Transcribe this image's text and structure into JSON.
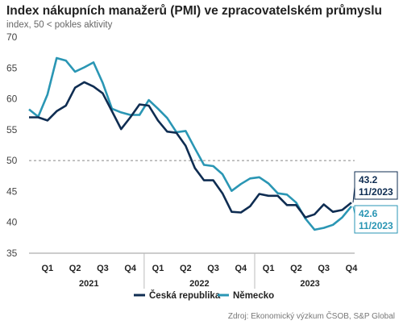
{
  "header": {
    "title": "Index nákupních manažerů (PMI) ve zpracovatelském průmyslu",
    "subtitle": "index, 50 < pokles aktivity"
  },
  "source": "Zdroj: Ekonomický výzkum ČSOB, S&P Global",
  "colors": {
    "cz": "#0f2d52",
    "de": "#2a96b4",
    "grid": "#d9d9d9",
    "ref": "#888888"
  },
  "chart_data": {
    "type": "line",
    "title": "Index nákupních manažerů (PMI) ve zpracovatelském průmyslu",
    "subtitle": "index, 50 < pokles aktivity",
    "ylim": [
      35,
      70
    ],
    "yticks": [
      35,
      40,
      45,
      50,
      55,
      60,
      65,
      70
    ],
    "reference_line": 50,
    "grid": false,
    "legend_position": "bottom",
    "x": [
      "2020-12",
      "2021-01",
      "2021-02",
      "2021-03",
      "2021-04",
      "2021-05",
      "2021-06",
      "2021-07",
      "2021-08",
      "2021-09",
      "2021-10",
      "2021-11",
      "2021-12",
      "2022-01",
      "2022-02",
      "2022-03",
      "2022-04",
      "2022-05",
      "2022-06",
      "2022-07",
      "2022-08",
      "2022-09",
      "2022-10",
      "2022-11",
      "2022-12",
      "2023-01",
      "2023-02",
      "2023-03",
      "2023-04",
      "2023-05",
      "2023-06",
      "2023-07",
      "2023-08",
      "2023-09",
      "2023-10",
      "2023-11"
    ],
    "quarter_labels": [
      "Q1",
      "Q2",
      "Q3",
      "Q4",
      "Q1",
      "Q2",
      "Q3",
      "Q4",
      "Q1",
      "Q2",
      "Q3",
      "Q4"
    ],
    "year_labels": [
      "2021",
      "2022",
      "2023"
    ],
    "series": [
      {
        "name": "Česká republika",
        "values": [
          57.0,
          57.0,
          56.5,
          58.0,
          58.9,
          61.8,
          62.7,
          62.0,
          60.9,
          58.0,
          55.1,
          57.0,
          59.1,
          58.9,
          56.5,
          54.7,
          54.5,
          52.4,
          48.8,
          46.8,
          46.8,
          44.7,
          41.7,
          41.6,
          42.6,
          44.6,
          44.3,
          44.3,
          42.8,
          42.8,
          40.8,
          41.3,
          42.9,
          41.7,
          42.0,
          43.2
        ]
      },
      {
        "name": "Německo",
        "values": [
          58.3,
          57.1,
          60.7,
          66.6,
          66.2,
          64.4,
          65.1,
          65.9,
          62.6,
          58.4,
          57.8,
          57.4,
          57.4,
          59.8,
          58.4,
          56.9,
          54.6,
          54.8,
          52.0,
          49.3,
          49.1,
          47.8,
          45.1,
          46.2,
          47.1,
          47.3,
          46.3,
          44.7,
          44.5,
          43.2,
          40.6,
          38.8,
          39.1,
          39.6,
          40.8,
          42.6
        ]
      }
    ],
    "annotations": [
      {
        "series": "Česká republika",
        "value": "43.2",
        "date": "11/2023"
      },
      {
        "series": "Německo",
        "value": "42.6",
        "date": "11/2023"
      }
    ]
  }
}
